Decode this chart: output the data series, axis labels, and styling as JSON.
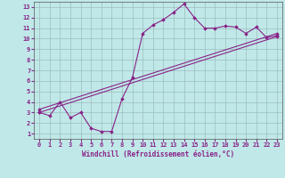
{
  "background_color": "#c0e8e8",
  "grid_color": "#9dbdbd",
  "line_color": "#882288",
  "marker_color": "#882288",
  "xlabel": "Windchill (Refroidissement éolien,°C)",
  "xlim": [
    -0.5,
    23.5
  ],
  "ylim": [
    0.5,
    13.5
  ],
  "xticks": [
    0,
    1,
    2,
    3,
    4,
    5,
    6,
    7,
    8,
    9,
    10,
    11,
    12,
    13,
    14,
    15,
    16,
    17,
    18,
    19,
    20,
    21,
    22,
    23
  ],
  "yticks": [
    1,
    2,
    3,
    4,
    5,
    6,
    7,
    8,
    9,
    10,
    11,
    12,
    13
  ],
  "line1_x": [
    0,
    1,
    2,
    3,
    4,
    5,
    6,
    7,
    8,
    9,
    10,
    11,
    12,
    13,
    14,
    15,
    16,
    17,
    18,
    19,
    20,
    21,
    22,
    23
  ],
  "line1_y": [
    3.0,
    2.7,
    4.0,
    2.5,
    3.0,
    1.5,
    1.2,
    1.2,
    4.3,
    6.3,
    10.5,
    11.3,
    11.8,
    12.5,
    13.3,
    12.0,
    11.0,
    11.0,
    11.2,
    11.1,
    10.5,
    11.1,
    10.1,
    10.3
  ],
  "line2_x": [
    0,
    23
  ],
  "line2_y": [
    3.3,
    10.5
  ],
  "line3_x": [
    0,
    23
  ],
  "line3_y": [
    3.0,
    10.2
  ]
}
